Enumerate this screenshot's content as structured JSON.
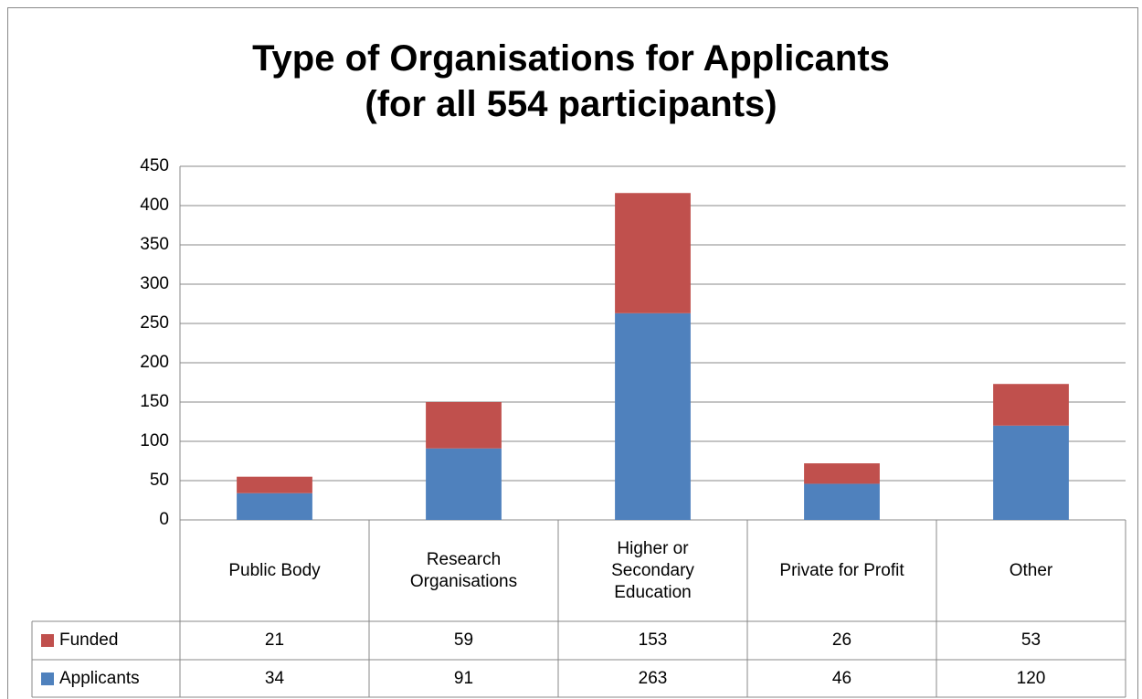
{
  "chart_data": {
    "type": "stacked_bar",
    "title": "Type of Organisations for Applicants",
    "subtitle": "(for all 554 participants)",
    "categories": [
      "Public Body",
      "Research Organisations",
      "Higher or Secondary Education",
      "Private for Profit",
      "Other"
    ],
    "series": [
      {
        "name": "Funded",
        "color": "#c0504d",
        "values": [
          21,
          59,
          153,
          26,
          53
        ]
      },
      {
        "name": "Applicants",
        "color": "#4f81bd",
        "values": [
          34,
          91,
          263,
          46,
          120
        ]
      }
    ],
    "stack_order": [
      "Applicants",
      "Funded"
    ],
    "ylim": [
      0,
      450
    ],
    "yticks": [
      0,
      50,
      100,
      150,
      200,
      250,
      300,
      350,
      400,
      450
    ],
    "grid": true,
    "legend": "table"
  }
}
